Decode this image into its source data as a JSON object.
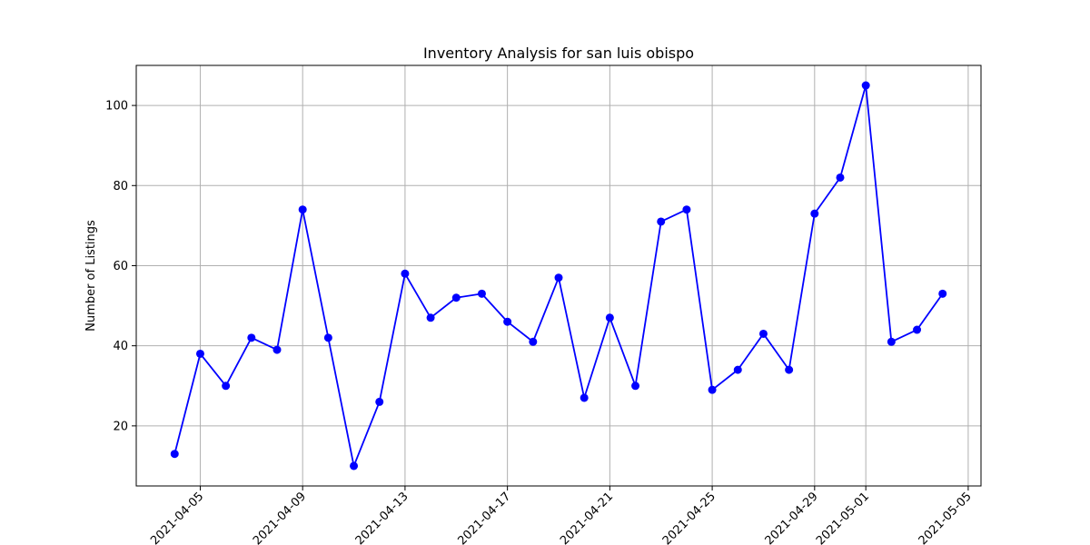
{
  "chart_data": {
    "type": "line",
    "title": "Inventory Analysis for san luis obispo",
    "xlabel": "",
    "ylabel": "Number of Listings",
    "grid": true,
    "x": [
      "2021-04-04",
      "2021-04-05",
      "2021-04-06",
      "2021-04-07",
      "2021-04-08",
      "2021-04-09",
      "2021-04-10",
      "2021-04-11",
      "2021-04-12",
      "2021-04-13",
      "2021-04-14",
      "2021-04-15",
      "2021-04-16",
      "2021-04-17",
      "2021-04-18",
      "2021-04-19",
      "2021-04-20",
      "2021-04-21",
      "2021-04-22",
      "2021-04-23",
      "2021-04-24",
      "2021-04-25",
      "2021-04-26",
      "2021-04-27",
      "2021-04-28",
      "2021-04-29",
      "2021-04-30",
      "2021-05-01",
      "2021-05-02",
      "2021-05-03",
      "2021-05-04"
    ],
    "series": [
      {
        "color": "#0000ff",
        "marker": "circle",
        "values": [
          13,
          38,
          30,
          42,
          39,
          74,
          42,
          10,
          26,
          58,
          47,
          52,
          53,
          46,
          41,
          57,
          27,
          47,
          30,
          71,
          74,
          29,
          34,
          43,
          34,
          73,
          82,
          105,
          41,
          44,
          53
        ]
      }
    ],
    "xlim": [
      "2021-04-02 12:00",
      "2021-05-05 12:00"
    ],
    "ylim": [
      5,
      110
    ],
    "xticks": [
      "2021-04-05",
      "2021-04-09",
      "2021-04-13",
      "2021-04-17",
      "2021-04-21",
      "2021-04-25",
      "2021-04-29",
      "2021-05-01",
      "2021-05-05"
    ],
    "yticks": [
      20,
      40,
      60,
      80,
      100
    ]
  }
}
